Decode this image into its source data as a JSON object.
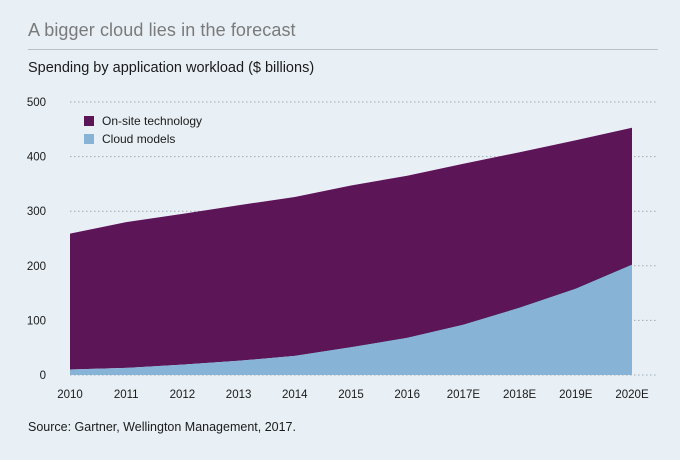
{
  "title": "A bigger cloud lies in the forecast",
  "subtitle": "Spending by application workload ($ billions)",
  "source": "Source: Gartner, Wellington Management, 2017.",
  "colors": {
    "background": "#e8f0f6",
    "onsite": "#5c1557",
    "cloud": "#86b3d6",
    "grid": "#9aa8b2"
  },
  "chart_data": {
    "type": "area",
    "stacked": true,
    "categories": [
      "2010",
      "2011",
      "2012",
      "2013",
      "2014",
      "2015",
      "2016",
      "2017E",
      "2018E",
      "2019E",
      "2020E"
    ],
    "series": [
      {
        "name": "Cloud models",
        "values": [
          10,
          13,
          19,
          26,
          35,
          51,
          68,
          92,
          123,
          158,
          202
        ]
      },
      {
        "name": "On-site technology",
        "values": [
          249,
          267,
          276,
          285,
          291,
          296,
          297,
          295,
          285,
          272,
          251
        ]
      }
    ],
    "totals": [
      259,
      280,
      295,
      311,
      326,
      347,
      365,
      387,
      408,
      430,
      453
    ],
    "yticks": [
      0,
      100,
      200,
      300,
      400,
      500
    ],
    "ylim": [
      0,
      500
    ],
    "grid": "horizontal dotted",
    "legend": {
      "position": "top-left",
      "order": [
        "On-site technology",
        "Cloud models"
      ]
    }
  }
}
